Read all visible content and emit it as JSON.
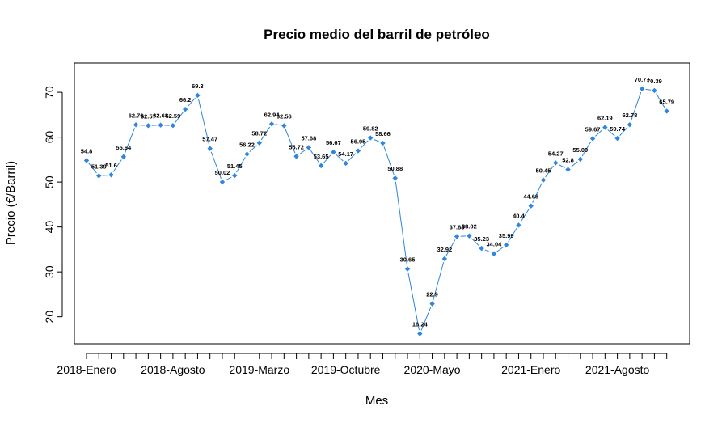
{
  "chart_data": {
    "type": "line",
    "title": "Precio medio del barril de petróleo",
    "xlabel": "Mes",
    "ylabel": "Precio (€/Barril)",
    "ylim": [
      14,
      76.5
    ],
    "yticks": [
      20,
      30,
      40,
      50,
      60,
      70
    ],
    "xtick_labels": [
      "2018-Enero",
      "2018-Agosto",
      "2019-Marzo",
      "2019-Octubre",
      "2020-Mayo",
      "2021-Enero",
      "2021-Agosto"
    ],
    "xtick_label_positions": [
      1,
      8,
      15,
      22,
      29,
      37,
      44
    ],
    "grid": false,
    "legend": "none",
    "series": [
      {
        "color": "#2e86de",
        "values": [
          54.8,
          51.39,
          51.6,
          55.64,
          62.76,
          62.57,
          62.68,
          62.59,
          66.2,
          69.3,
          57.47,
          50.02,
          51.45,
          56.22,
          58.72,
          62.94,
          62.56,
          55.72,
          57.68,
          53.65,
          56.67,
          54.17,
          56.95,
          59.82,
          58.66,
          50.88,
          30.65,
          16.24,
          22.9,
          32.92,
          37.88,
          38.02,
          35.23,
          34.04,
          35.99,
          40.4,
          44.68,
          50.45,
          54.27,
          52.8,
          55.09,
          59.67,
          62.19,
          59.74,
          62.78,
          70.77,
          70.39,
          65.79
        ],
        "labels": [
          "54.8",
          "51.39",
          "51.6",
          "55.64",
          "62.76",
          "62.57",
          "62.68",
          "62.59",
          "66.2",
          "69.3",
          "57.47",
          "50.02",
          "51.45",
          "56.22",
          "58.72",
          "62.94",
          "62.56",
          "55.72",
          "57.68",
          "53.65",
          "56.67",
          "54.17",
          "56.95",
          "59.82",
          "58.66",
          "50.88",
          "30.65",
          "16.24",
          "22.9",
          "32.92",
          "37.88",
          "38.02",
          "35.23",
          "34.04",
          "35.99",
          "40.4",
          "44.68",
          "50.45",
          "54.27",
          "52.8",
          "55.09",
          "59.67",
          "62.19",
          "59.74",
          "62.78",
          "70.77",
          "70.39",
          "65.79"
        ]
      }
    ]
  }
}
